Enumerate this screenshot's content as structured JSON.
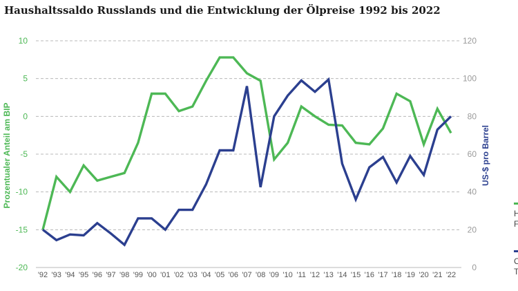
{
  "title": "Haushaltssaldo Russlands und die Entwicklung der Ölpreise 1992 bis 2022",
  "colors": {
    "green": "#4db855",
    "blue": "#2b3f8f",
    "grid": "#b8b8b8",
    "tick": "#9a9a9a"
  },
  "chart_data": {
    "type": "line",
    "title": "Haushaltssaldo Russlands und die Entwicklung der Ölpreise 1992 bis 2022",
    "x": [
      "'92",
      "'93",
      "'94",
      "'95",
      "'96",
      "'97",
      "'98",
      "'99",
      "'00",
      "'01",
      "'02",
      "'03",
      "'04",
      "'05",
      "'06",
      "'07",
      "'08",
      "'09",
      "'10",
      "'11",
      "'12",
      "'13",
      "'14",
      "'15",
      "'16",
      "'17",
      "'18",
      "'19",
      "'20",
      "'21",
      "'22"
    ],
    "y_left": {
      "label": "Prozentualer Anteil am BIP",
      "ylim": [
        -20,
        10
      ],
      "ticks": [
        10,
        5,
        0,
        -5,
        -10,
        -15,
        -20
      ]
    },
    "y_right": {
      "label": "US-$ pro Barrel",
      "ylim": [
        0,
        120
      ],
      "ticks": [
        120,
        100,
        80,
        60,
        40,
        20,
        0
      ]
    },
    "grid": true,
    "series": [
      {
        "name": "H…",
        "axis": "left",
        "color": "#4db855",
        "values": [
          -15,
          -8,
          -10,
          -6.5,
          -8.5,
          -8,
          -7.5,
          -3.5,
          3,
          3,
          0.7,
          1.3,
          4.7,
          7.8,
          7.8,
          5.7,
          4.7,
          -5.7,
          -3.5,
          1.3,
          0,
          -1.1,
          -1.2,
          -3.5,
          -3.7,
          -1.6,
          3,
          2,
          -3.7,
          1,
          -2.2
        ]
      },
      {
        "name": "O…",
        "axis": "right",
        "color": "#2b3f8f",
        "values": [
          20,
          14.5,
          17.5,
          17,
          23.5,
          18,
          12,
          26,
          26,
          20,
          30.5,
          30.5,
          44,
          62,
          62,
          96,
          42.5,
          80,
          91,
          99,
          93,
          99.5,
          55,
          36,
          53,
          58.5,
          45,
          59,
          49,
          73,
          80
        ]
      }
    ]
  },
  "legend": {
    "green_text": "H\nF",
    "blue_text": "C\nT"
  }
}
